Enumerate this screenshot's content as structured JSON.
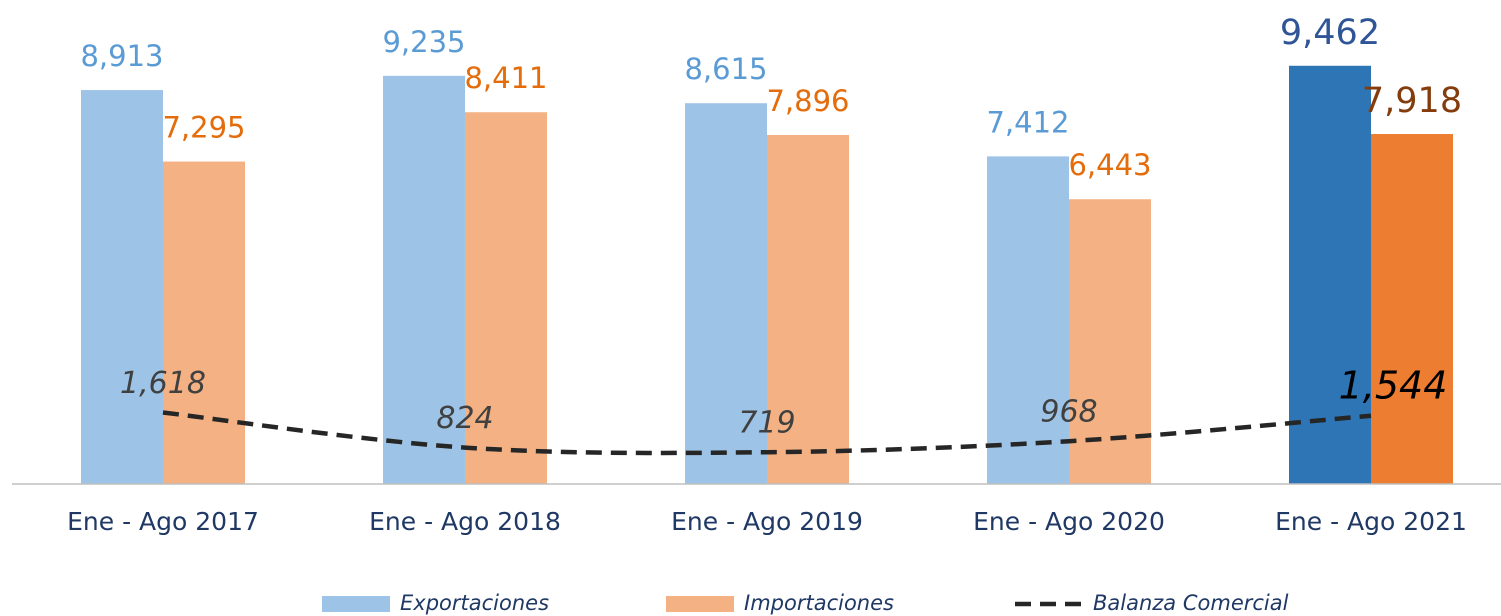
{
  "chart_data": {
    "type": "bar_line",
    "categories": [
      "Ene - Ago 2017",
      "Ene - Ago 2018",
      "Ene - Ago 2019",
      "Ene - Ago 2020",
      "Ene - Ago 2021"
    ],
    "ylim": [
      0,
      10000
    ],
    "series": [
      {
        "name": "Exportaciones",
        "type": "bar",
        "color": "#9dc3e6",
        "colors": [
          "#9dc3e6",
          "#9dc3e6",
          "#9dc3e6",
          "#9dc3e6",
          "#2e75b6"
        ],
        "label_colors": [
          "#5b9bd5",
          "#5b9bd5",
          "#5b9bd5",
          "#5b9bd5",
          "#2f5597"
        ],
        "values": [
          8913,
          9235,
          8615,
          7412,
          9462
        ],
        "value_labels": [
          "8,913",
          "9,235",
          "8,615",
          "7,412",
          "9,462"
        ]
      },
      {
        "name": "Importaciones",
        "type": "bar",
        "color": "#f4b183",
        "colors": [
          "#f4b183",
          "#f4b183",
          "#f4b183",
          "#f4b183",
          "#ed7d31"
        ],
        "label_colors": [
          "#e46c0a",
          "#e46c0a",
          "#e46c0a",
          "#e46c0a",
          "#843c0c"
        ],
        "values": [
          7295,
          8411,
          7896,
          6443,
          7918
        ],
        "value_labels": [
          "7,295",
          "8,411",
          "7,896",
          "6,443",
          "7,918"
        ]
      },
      {
        "name": "Balanza Comercial",
        "type": "line",
        "color": "#262626",
        "label_colors": [
          "#404040",
          "#404040",
          "#404040",
          "#404040",
          "#000000"
        ],
        "values": [
          1618,
          824,
          719,
          968,
          1544
        ],
        "value_labels": [
          "1,618",
          "824",
          "719",
          "968",
          "1,544"
        ]
      }
    ]
  }
}
